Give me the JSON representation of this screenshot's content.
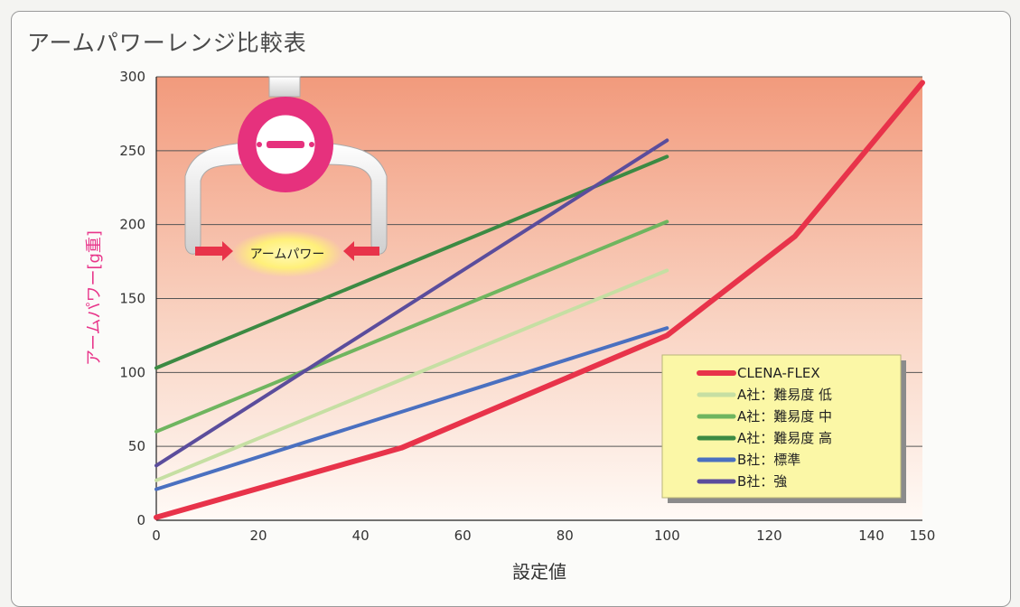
{
  "title": "アームパワーレンジ比較表",
  "illustration": {
    "label": "アームパワー"
  },
  "chart_data": {
    "type": "line",
    "title": "アームパワーレンジ比較表",
    "xlabel": "設定値",
    "ylabel": "アームパワー[g重]",
    "xlim": [
      0,
      150
    ],
    "ylim": [
      0,
      300
    ],
    "xticks": [
      0,
      20,
      40,
      60,
      80,
      100,
      120,
      140,
      150
    ],
    "yticks": [
      0,
      50,
      100,
      150,
      200,
      250,
      300
    ],
    "grid": "horizontal",
    "legend": "bottom-right",
    "series": [
      {
        "name": "CLENA-FLEX",
        "color": "#e8334a",
        "points": [
          [
            0,
            2
          ],
          [
            48,
            49
          ],
          [
            100,
            125
          ],
          [
            125,
            192
          ],
          [
            150,
            296
          ]
        ]
      },
      {
        "name": "A社：難易度 低",
        "color": "#c6dfa3",
        "points": [
          [
            0,
            27
          ],
          [
            100,
            169
          ]
        ]
      },
      {
        "name": "A社：難易度 中",
        "color": "#6fb55f",
        "points": [
          [
            0,
            60
          ],
          [
            100,
            202
          ]
        ]
      },
      {
        "name": "A社：難易度 高",
        "color": "#3c8a43",
        "points": [
          [
            0,
            103
          ],
          [
            100,
            246
          ]
        ]
      },
      {
        "name": "B社：標準",
        "color": "#4a70c0",
        "points": [
          [
            0,
            21
          ],
          [
            100,
            130
          ]
        ]
      },
      {
        "name": "B社：強",
        "color": "#5b4d9c",
        "points": [
          [
            0,
            37
          ],
          [
            100,
            257
          ]
        ]
      }
    ]
  }
}
